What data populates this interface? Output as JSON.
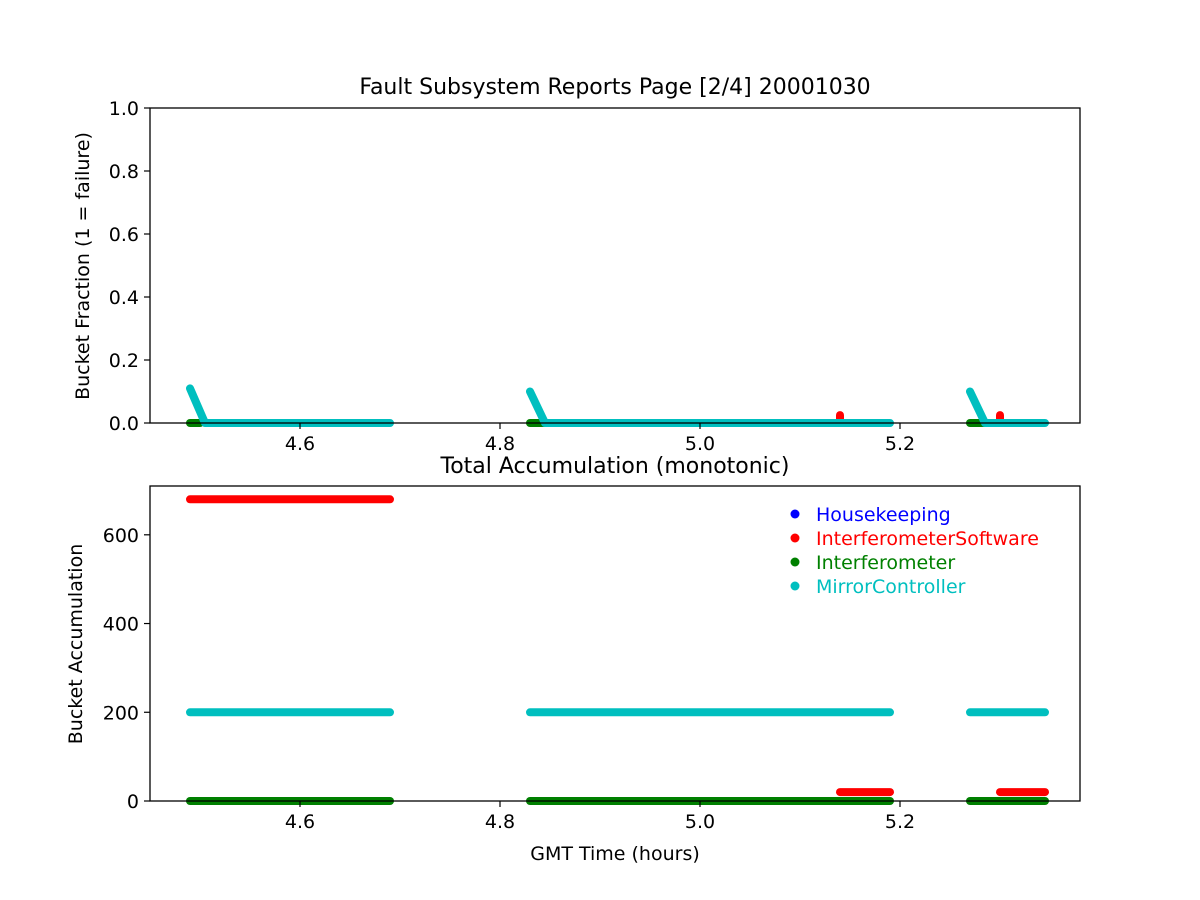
{
  "figure": {
    "title": "Fault Subsystem Reports Page [2/4] 20001030"
  },
  "colors": {
    "Housekeeping": "#0000ff",
    "InterferometerSoftware": "#ff0000",
    "Interferometer": "#008000",
    "MirrorController": "#00bfbf"
  },
  "chart_data": [
    {
      "type": "scatter",
      "title": "",
      "xlabel": "",
      "ylabel": "Bucket Fraction (1 = failure)",
      "xlim": [
        4.45,
        5.38
      ],
      "ylim": [
        0,
        1.0
      ],
      "xticks": [
        "4.6",
        "4.8",
        "5.0",
        "5.2"
      ],
      "yticks": [
        "0.0",
        "0.2",
        "0.4",
        "0.6",
        "0.8",
        "1.0"
      ],
      "legend": null,
      "series": [
        {
          "name": "Interferometer",
          "color": "#008000",
          "segments": [
            {
              "x": [
                4.49,
                4.5
              ],
              "y": [
                0.0,
                0.0
              ]
            },
            {
              "x": [
                4.83,
                4.85
              ],
              "y": [
                0.0,
                0.0
              ]
            },
            {
              "x": [
                5.27,
                5.29
              ],
              "y": [
                0.0,
                0.0
              ]
            }
          ]
        },
        {
          "name": "InterferometerSoftware",
          "color": "#ff0000",
          "segments": [
            {
              "x": [
                5.14,
                5.14
              ],
              "y": [
                0.0,
                0.025
              ]
            },
            {
              "x": [
                5.3,
                5.3
              ],
              "y": [
                0.0,
                0.025
              ]
            }
          ]
        },
        {
          "name": "MirrorController",
          "color": "#00bfbf",
          "segments": [
            {
              "x": [
                4.49,
                4.505,
                4.69
              ],
              "y": [
                0.11,
                0.0,
                0.0
              ]
            },
            {
              "x": [
                4.83,
                4.845,
                5.19
              ],
              "y": [
                0.1,
                0.0,
                0.0
              ]
            },
            {
              "x": [
                5.27,
                5.285,
                5.345
              ],
              "y": [
                0.1,
                0.0,
                0.0
              ]
            }
          ]
        }
      ]
    },
    {
      "type": "scatter",
      "title": "Total Accumulation (monotonic)",
      "xlabel": "GMT Time (hours)",
      "ylabel": "Bucket Accumulation",
      "xlim": [
        4.45,
        5.38
      ],
      "ylim": [
        0,
        710
      ],
      "xticks": [
        "4.6",
        "4.8",
        "5.0",
        "5.2"
      ],
      "yticks": [
        "0",
        "200",
        "400",
        "600"
      ],
      "legend": "top-right",
      "legend_entries": [
        "Housekeeping",
        "InterferometerSoftware",
        "Interferometer",
        "MirrorController"
      ],
      "series": [
        {
          "name": "MirrorController",
          "color": "#00bfbf",
          "segments": [
            {
              "x": [
                4.49,
                4.69
              ],
              "y": [
                200,
                200
              ]
            },
            {
              "x": [
                4.83,
                5.19
              ],
              "y": [
                200,
                200
              ]
            },
            {
              "x": [
                5.27,
                5.345
              ],
              "y": [
                200,
                200
              ]
            }
          ]
        },
        {
          "name": "InterferometerSoftware",
          "color": "#ff0000",
          "segments": [
            {
              "x": [
                4.49,
                4.69
              ],
              "y": [
                680,
                680
              ]
            },
            {
              "x": [
                5.14,
                5.19
              ],
              "y": [
                20,
                20
              ]
            },
            {
              "x": [
                5.3,
                5.345
              ],
              "y": [
                20,
                20
              ]
            }
          ]
        },
        {
          "name": "Interferometer",
          "color": "#008000",
          "segments": [
            {
              "x": [
                4.49,
                4.69
              ],
              "y": [
                0,
                0
              ]
            },
            {
              "x": [
                4.83,
                5.19
              ],
              "y": [
                0,
                0
              ]
            },
            {
              "x": [
                5.27,
                5.345
              ],
              "y": [
                0,
                0
              ]
            }
          ]
        }
      ]
    }
  ]
}
